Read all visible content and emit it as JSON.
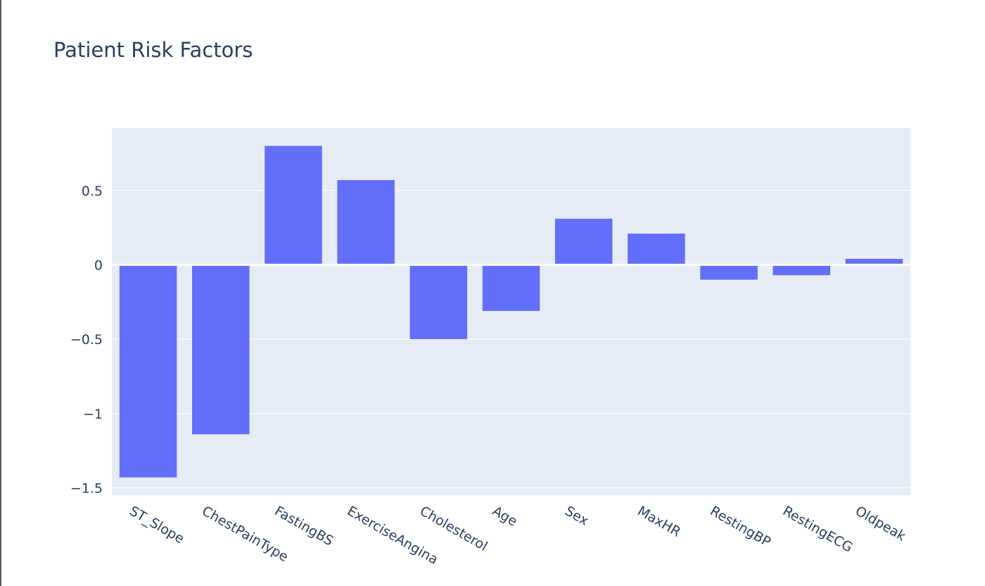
{
  "chart_data": {
    "type": "bar",
    "title": "Patient Risk Factors",
    "xlabel": "",
    "ylabel": "",
    "categories": [
      "ST_Slope",
      "ChestPainType",
      "FastingBS",
      "ExerciseAngina",
      "Cholesterol",
      "Age",
      "Sex",
      "MaxHR",
      "RestingBP",
      "RestingECG",
      "Oldpeak"
    ],
    "values": [
      -1.43,
      -1.14,
      0.8,
      0.57,
      -0.5,
      -0.31,
      0.31,
      0.21,
      -0.1,
      -0.07,
      0.04
    ],
    "ylim": [
      -1.55,
      0.92
    ],
    "yticks": [
      0.5,
      0,
      -0.5,
      -1,
      -1.5
    ],
    "ytick_labels": [
      "0.5",
      "0",
      "−0.5",
      "−1",
      "−1.5"
    ],
    "grid": true,
    "legend": "none",
    "colors": {
      "bar": "#636efa",
      "plot_bg": "#e5ecf6",
      "grid": "#ffffff",
      "text": "#2a3f5f"
    }
  }
}
